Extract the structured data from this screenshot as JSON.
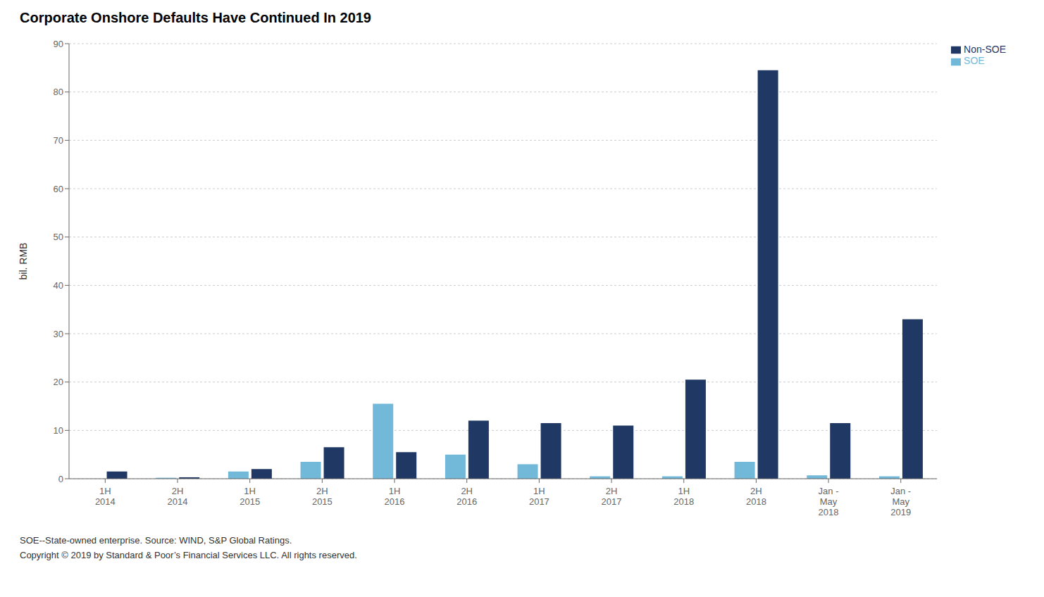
{
  "chart_data": {
    "type": "bar",
    "title": "Corporate Onshore Defaults Have Continued In 2019",
    "ylabel": "bil. RMB",
    "categories": [
      "1H\n2014",
      "2H\n2014",
      "1H\n2015",
      "2H\n2015",
      "1H\n2016",
      "2H\n2016",
      "1H\n2017",
      "2H\n2017",
      "1H\n2018",
      "2H\n2018",
      "Jan -\nMay\n2018",
      "Jan -\nMay\n2019"
    ],
    "series": [
      {
        "name": "SOE",
        "color": "#72b8d8",
        "values": [
          0.0,
          0.2,
          1.5,
          3.5,
          15.5,
          5.0,
          3.0,
          0.5,
          0.5,
          3.5,
          0.7,
          0.5
        ]
      },
      {
        "name": "Non-SOE",
        "color": "#1f3864",
        "values": [
          1.5,
          0.3,
          2.0,
          6.5,
          5.5,
          12.0,
          11.5,
          11.0,
          20.5,
          84.5,
          11.5,
          33.0
        ]
      }
    ],
    "ylim": [
      0,
      90
    ],
    "yticks": [
      0,
      10,
      20,
      30,
      40,
      50,
      60,
      70,
      80,
      90
    ],
    "grid": true,
    "legend": "right",
    "annotations": [
      "SOE--State-owned enterprise.  Source: WIND, S&P Global Ratings.",
      "Copyright © 2019 by Standard & Poor’s Financial Services LLC. All rights reserved."
    ]
  }
}
